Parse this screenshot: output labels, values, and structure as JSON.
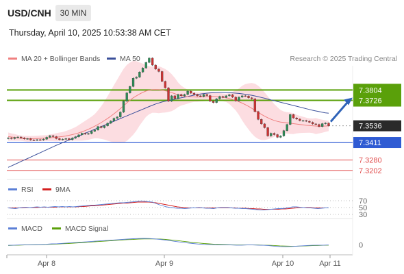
{
  "header": {
    "pair": "USD/CNH",
    "timeframe": "30 MIN",
    "timestamp": "Thursday, April 10, 2025 10:53:38 AM CET"
  },
  "legend": {
    "ma20": "MA 20 + Bollinger Bands",
    "ma50": "MA 50",
    "copyright": "Research © 2025 Trading Central",
    "rsi": "RSI",
    "rsi_ma": "9MA",
    "macd": "MACD",
    "macd_signal": "MACD Signal"
  },
  "colors": {
    "ma20": "#f08080",
    "ma50": "#3a4f9a",
    "bollinger_fill": "#fbd5d9",
    "resistance": "#5aa00a",
    "support": "#2f5bd3",
    "pivot_red": "#e04848",
    "current_price": "#2a2a2a",
    "rsi": "#5b7fd6",
    "rsi_ma": "#d41f1f",
    "macd": "#5b7fd6",
    "macd_signal": "#5aa00a",
    "arrow": "#2f63b8"
  },
  "chart_data": [
    {
      "type": "candlestick",
      "title": "USD/CNH",
      "x_ticks": [
        "Apr 8",
        "Apr 9",
        "Apr 10",
        "Apr 11"
      ],
      "ylim": [
        7.3155,
        7.3985
      ],
      "levels": [
        {
          "label": "7.3804",
          "value": 7.3804,
          "kind": "resistance"
        },
        {
          "label": "7.3726",
          "value": 7.3726,
          "kind": "resistance"
        },
        {
          "label": "7.3536",
          "value": 7.3536,
          "kind": "current"
        },
        {
          "label": "7.3411",
          "value": 7.3411,
          "kind": "support"
        },
        {
          "label": "7.3280",
          "value": 7.328,
          "kind": "support"
        },
        {
          "label": "7.3202",
          "value": 7.3202,
          "kind": "support"
        }
      ],
      "forecast": "up",
      "close": [
        7.3445,
        7.344,
        7.3448,
        7.3452,
        7.3445,
        7.3438,
        7.344,
        7.343,
        7.3428,
        7.3432,
        7.343,
        7.3436,
        7.345,
        7.3462,
        7.3455,
        7.344,
        7.3432,
        7.3436,
        7.344,
        7.3432,
        7.3444,
        7.3454,
        7.3468,
        7.348,
        7.3474,
        7.3478,
        7.3495,
        7.3505,
        7.353,
        7.3522,
        7.3536,
        7.3555,
        7.3572,
        7.3592,
        7.3602,
        7.3638,
        7.372,
        7.3782,
        7.383,
        7.3892,
        7.39,
        7.3938,
        7.3968,
        7.401,
        7.4042,
        7.399,
        7.396,
        7.3942,
        7.3868,
        7.382,
        7.372,
        7.376,
        7.374,
        7.377,
        7.376,
        7.377,
        7.3795,
        7.378,
        7.377,
        7.376,
        7.3755,
        7.377,
        7.3762,
        7.372,
        7.371,
        7.3738,
        7.3755,
        7.3748,
        7.376,
        7.3768,
        7.375,
        7.3722,
        7.375,
        7.376,
        7.3758,
        7.3745,
        7.3738,
        7.3642,
        7.3584,
        7.355,
        7.3522,
        7.346,
        7.348,
        7.347,
        7.345,
        7.346,
        7.35,
        7.3546,
        7.362,
        7.3595,
        7.3586,
        7.3575,
        7.3575,
        7.357,
        7.3562,
        7.355,
        7.3546,
        7.353,
        7.3552,
        7.3556,
        7.3536
      ],
      "ma20": [
        7.3455,
        7.3452,
        7.3449,
        7.3446,
        7.3443,
        7.344,
        7.3439,
        7.3439,
        7.344,
        7.3441,
        7.3442,
        7.3443,
        7.3444,
        7.3446,
        7.3448,
        7.345,
        7.3453,
        7.3456,
        7.346,
        7.3465,
        7.347,
        7.3476,
        7.3483,
        7.3491,
        7.35,
        7.351,
        7.3521,
        7.3533,
        7.3546,
        7.356,
        7.3575,
        7.3591,
        7.3608,
        7.3626,
        7.3645,
        7.3665,
        7.3686,
        7.3707,
        7.3727,
        7.3745,
        7.376,
        7.3774,
        7.3786,
        7.3796,
        7.3802,
        7.3806,
        7.3807,
        7.3806,
        7.3803,
        7.3798,
        7.3792,
        7.3784,
        7.3776,
        7.3768,
        7.3762,
        7.3757,
        7.3754,
        7.3753,
        7.3752,
        7.3751,
        7.3752,
        7.3753,
        7.3754,
        7.3755,
        7.3755,
        7.3754,
        7.3752,
        7.3749,
        7.3745,
        7.374,
        7.3733,
        7.3726,
        7.3716,
        7.3706,
        7.3694,
        7.3681,
        7.3667,
        7.3652,
        7.3637,
        7.3622,
        7.3608,
        7.3596,
        7.3585,
        7.3576,
        7.3569,
        7.3564,
        7.3561,
        7.3558,
        7.3555,
        7.3552,
        7.3549,
        7.3546,
        7.3543,
        7.354,
        7.3538,
        7.3536,
        7.3534,
        7.3533,
        7.3533,
        7.3534,
        7.3535
      ],
      "ma50": [
        7.3225,
        7.3236,
        7.3247,
        7.3258,
        7.3269,
        7.328,
        7.3291,
        7.3302,
        7.3313,
        7.3324,
        7.3335,
        7.3346,
        7.3357,
        7.3368,
        7.3379,
        7.339,
        7.34,
        7.341,
        7.342,
        7.343,
        7.344,
        7.345,
        7.346,
        7.347,
        7.348,
        7.349,
        7.35,
        7.351,
        7.352,
        7.353,
        7.354,
        7.355,
        7.356,
        7.357,
        7.358,
        7.359,
        7.36,
        7.361,
        7.362,
        7.363,
        7.364,
        7.365,
        7.366,
        7.367,
        7.368,
        7.369,
        7.3699,
        7.3707,
        7.3714,
        7.372,
        7.3725,
        7.373,
        7.3735,
        7.374,
        7.3745,
        7.375,
        7.3755,
        7.376,
        7.3765,
        7.377,
        7.3774,
        7.3777,
        7.378,
        7.3782,
        7.3783,
        7.3784,
        7.3785,
        7.3785,
        7.3784,
        7.3783,
        7.3782,
        7.378,
        7.3778,
        7.3775,
        7.3772,
        7.3768,
        7.3764,
        7.3759,
        7.3754,
        7.3748,
        7.3742,
        7.3736,
        7.373,
        7.3724,
        7.3718,
        7.3712,
        7.3706,
        7.37,
        7.3694,
        7.3688,
        7.3682,
        7.3676,
        7.367,
        7.3664,
        7.3658,
        7.3652,
        7.3647,
        7.3642,
        7.3637,
        7.3633,
        7.363
      ]
    },
    {
      "type": "line",
      "title": "RSI",
      "y_ticks": [
        70,
        50,
        30
      ],
      "ylim": [
        20,
        80
      ],
      "series": [
        {
          "name": "RSI",
          "values": [
            49,
            48,
            47,
            49,
            50,
            51,
            50,
            51,
            52,
            51,
            52,
            51,
            52,
            53,
            52,
            53,
            52,
            53,
            52,
            53,
            54,
            55,
            56,
            57,
            57,
            58,
            59,
            60,
            61,
            62,
            63,
            64,
            64,
            65,
            66,
            67,
            68,
            69,
            68,
            67,
            66,
            62,
            58,
            55,
            52,
            50,
            49,
            48,
            48,
            47,
            48,
            49,
            49,
            50,
            49,
            48,
            48,
            47,
            49,
            50,
            50,
            50,
            49,
            48,
            48,
            47,
            47,
            46,
            45,
            44,
            43,
            43,
            44,
            45,
            46,
            47,
            47,
            48,
            50,
            52,
            52,
            51,
            50,
            49,
            49,
            48,
            47,
            48,
            49,
            49
          ]
        },
        {
          "name": "9MA",
          "values": [
            49,
            49,
            49,
            49,
            49,
            50,
            50,
            50,
            50,
            51,
            51,
            51,
            51,
            51,
            52,
            52,
            52,
            52,
            52,
            52,
            53,
            53,
            54,
            55,
            55,
            56,
            57,
            58,
            59,
            60,
            61,
            62,
            63,
            63,
            64,
            65,
            66,
            66,
            66,
            66,
            65,
            64,
            62,
            60,
            58,
            56,
            54,
            52,
            51,
            50,
            49,
            49,
            49,
            49,
            49,
            49,
            49,
            49,
            49,
            49,
            49,
            49,
            49,
            49,
            48,
            48,
            48,
            47,
            47,
            46,
            46,
            45,
            45,
            45,
            45,
            45,
            46,
            46,
            47,
            48,
            49,
            50,
            50,
            50,
            50,
            49,
            49,
            49,
            49,
            49
          ]
        }
      ]
    },
    {
      "type": "line",
      "title": "MACD",
      "y_ticks": [
        0
      ],
      "ylim": [
        -0.004,
        0.006
      ],
      "series": [
        {
          "name": "MACD",
          "values": [
            -0.0002,
            -0.0001,
            0,
            0.0001,
            0.0001,
            0.0002,
            0.0003,
            0.0004,
            0.0006,
            0.0007,
            0.0009,
            0.0011,
            0.0013,
            0.0015,
            0.0017,
            0.0019,
            0.0021,
            0.0023,
            0.0025,
            0.0027,
            0.0029,
            0.0031,
            0.0033,
            0.0035,
            0.0036,
            0.0037,
            0.0036,
            0.0034,
            0.0031,
            0.0027,
            0.0023,
            0.0019,
            0.0015,
            0.0011,
            0.0008,
            0.0005,
            0.0003,
            0.0002,
            0.0001,
            0,
            0,
            0,
            -0.0001,
            -0.0001,
            0,
            0,
            -0.0001,
            -0.0002,
            -0.0004,
            -0.0007,
            -0.0009,
            -0.001,
            -0.0009,
            -0.0007,
            -0.0005,
            -0.0003,
            -0.0002,
            -0.0001,
            -0.0001,
            0
          ]
        },
        {
          "name": "MACD Signal",
          "values": [
            -0.0003,
            -0.0002,
            -0.0001,
            0,
            0.0001,
            0.0001,
            0.0002,
            0.0003,
            0.0004,
            0.0005,
            0.0007,
            0.0008,
            0.001,
            0.0012,
            0.0014,
            0.0016,
            0.0018,
            0.002,
            0.0022,
            0.0024,
            0.0026,
            0.0028,
            0.003,
            0.0031,
            0.0033,
            0.0034,
            0.0034,
            0.0034,
            0.0033,
            0.0031,
            0.0028,
            0.0025,
            0.0021,
            0.0018,
            0.0014,
            0.0011,
            0.0008,
            0.0006,
            0.0004,
            0.0003,
            0.0002,
            0.0001,
            0,
            0,
            0,
            0,
            0,
            -0.0001,
            -0.0002,
            -0.0003,
            -0.0005,
            -0.0006,
            -0.0007,
            -0.0007,
            -0.0006,
            -0.0005,
            -0.0004,
            -0.0003,
            -0.0002,
            -0.0001
          ]
        }
      ]
    }
  ]
}
